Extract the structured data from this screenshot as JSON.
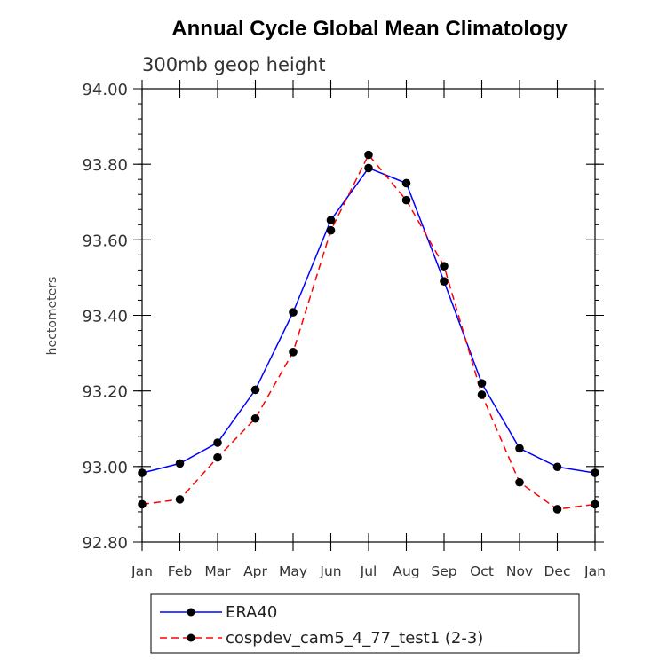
{
  "chart_data": {
    "type": "line",
    "title": "Annual Cycle Global Mean Climatology",
    "subtitle": "300mb geop height",
    "ylabel": "hectometers",
    "xlabel": "",
    "ylim": [
      92.8,
      94.0
    ],
    "y_ticks": [
      "92.80",
      "93.00",
      "93.20",
      "93.40",
      "93.60",
      "93.80",
      "94.00"
    ],
    "categories": [
      "Jan",
      "Feb",
      "Mar",
      "Apr",
      "May",
      "Jun",
      "Jul",
      "Aug",
      "Sep",
      "Oct",
      "Nov",
      "Dec",
      "Jan"
    ],
    "series": [
      {
        "name": "ERA40",
        "color": "#0000ff",
        "dash": "solid",
        "values": [
          92.983,
          93.008,
          93.063,
          93.203,
          93.408,
          93.652,
          93.79,
          93.75,
          93.49,
          93.22,
          93.048,
          92.999,
          92.983
        ]
      },
      {
        "name": "cospdev_cam5_4_77_test1 (2-3)",
        "color": "#ff0000",
        "dash": "dashed",
        "values": [
          92.9,
          92.913,
          93.024,
          93.127,
          93.303,
          93.625,
          93.825,
          93.705,
          93.53,
          93.19,
          92.958,
          92.887,
          92.9
        ]
      }
    ],
    "legend": "bottom"
  }
}
